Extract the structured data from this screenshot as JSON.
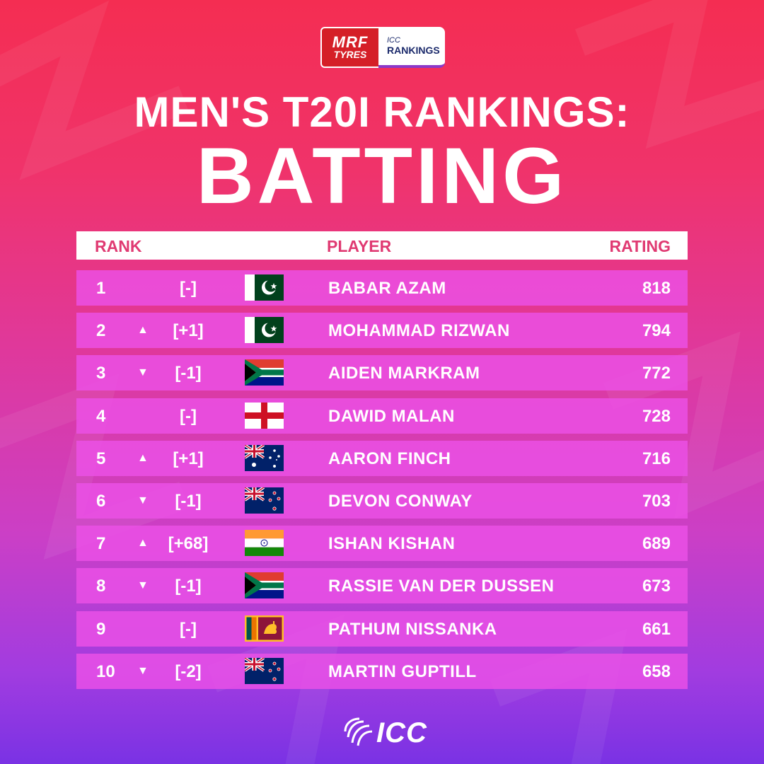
{
  "sponsor": {
    "brand_line1": "MRF",
    "brand_line2": "TYRES",
    "rank_line1": "ICC",
    "rank_line2": "RANKINGS"
  },
  "title": {
    "line1": "MEN'S T20I RANKINGS:",
    "line2": "BATTING"
  },
  "headers": {
    "rank": "RANK",
    "player": "PLAYER",
    "rating": "RATING"
  },
  "rows": [
    {
      "rank": "1",
      "arrow": "",
      "change": "[-]",
      "flag": "pakistan-flag-icon",
      "player": "BABAR AZAM",
      "rating": "818"
    },
    {
      "rank": "2",
      "arrow": "▲",
      "change": "[+1]",
      "flag": "pakistan-flag-icon",
      "player": "MOHAMMAD RIZWAN",
      "rating": "794"
    },
    {
      "rank": "3",
      "arrow": "▼",
      "change": "[-1]",
      "flag": "south-africa-flag-icon",
      "player": "AIDEN MARKRAM",
      "rating": "772"
    },
    {
      "rank": "4",
      "arrow": "",
      "change": "[-]",
      "flag": "england-flag-icon",
      "player": "DAWID MALAN",
      "rating": "728"
    },
    {
      "rank": "5",
      "arrow": "▲",
      "change": "[+1]",
      "flag": "australia-flag-icon",
      "player": "AARON FINCH",
      "rating": "716"
    },
    {
      "rank": "6",
      "arrow": "▼",
      "change": "[-1]",
      "flag": "new-zealand-flag-icon",
      "player": "DEVON CONWAY",
      "rating": "703"
    },
    {
      "rank": "7",
      "arrow": "▲",
      "change": "[+68]",
      "flag": "india-flag-icon",
      "player": "ISHAN KISHAN",
      "rating": "689"
    },
    {
      "rank": "8",
      "arrow": "▼",
      "change": "[-1]",
      "flag": "south-africa-flag-icon",
      "player": "RASSIE VAN DER DUSSEN",
      "rating": "673"
    },
    {
      "rank": "9",
      "arrow": "",
      "change": "[-]",
      "flag": "sri-lanka-flag-icon",
      "player": "PATHUM NISSANKA",
      "rating": "661"
    },
    {
      "rank": "10",
      "arrow": "▼",
      "change": "[-2]",
      "flag": "new-zealand-flag-icon",
      "player": "MARTIN GUPTILL",
      "rating": "658"
    }
  ],
  "footer": {
    "logo_text": "ICC"
  },
  "colors": {
    "header_text": "#e03a72",
    "row_bg": "#eb50e6"
  }
}
